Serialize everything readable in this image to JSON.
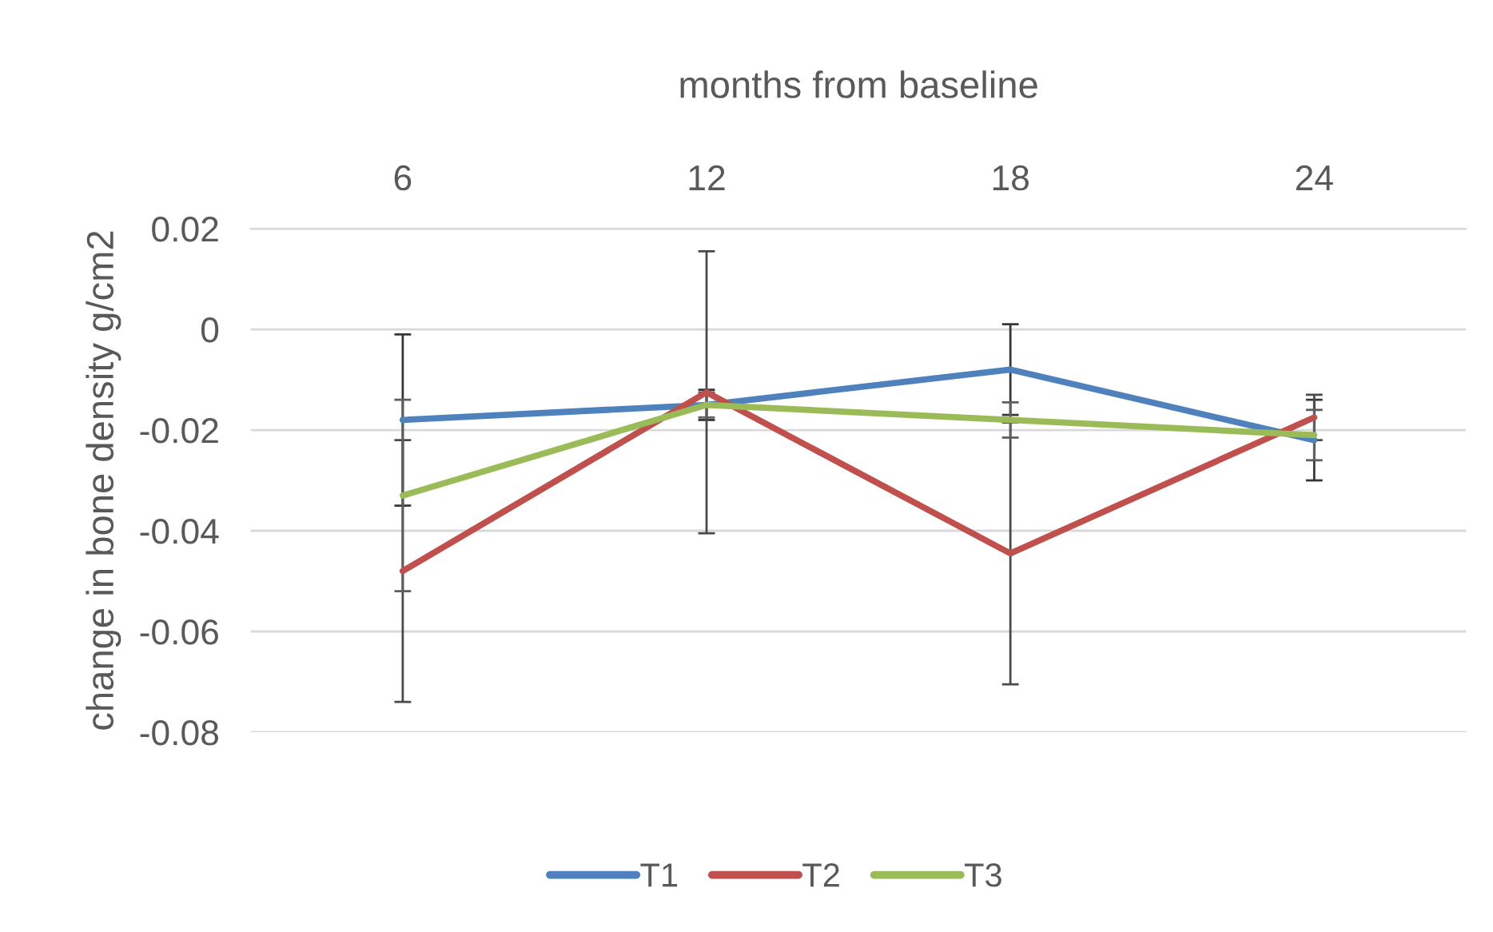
{
  "chart_data": {
    "type": "line",
    "xlabel": "months from baseline",
    "ylabel": "change in bone density g/cm2",
    "categories": [
      "6",
      "12",
      "18",
      "24"
    ],
    "series": [
      {
        "name": "T1",
        "color": "#4f81bd",
        "values": [
          -0.018,
          -0.015,
          -0.008,
          -0.022
        ],
        "errors": [
          0.017,
          0.003,
          0.009,
          0.008
        ]
      },
      {
        "name": "T2",
        "color": "#c0504d",
        "values": [
          -0.048,
          -0.0125,
          -0.0445,
          -0.0175
        ],
        "errors": [
          0.026,
          0.028,
          0.026,
          0.0045
        ]
      },
      {
        "name": "T3",
        "color": "#9bbb59",
        "values": [
          -0.033,
          -0.015,
          -0.018,
          -0.021
        ],
        "errors": [
          0.019,
          0.0025,
          0.0035,
          0.005
        ]
      }
    ],
    "ylim": [
      -0.08,
      0.02
    ],
    "yticks": [
      0.02,
      0,
      -0.02,
      -0.04,
      -0.06,
      -0.08
    ],
    "grid": "y",
    "legend": "bottom"
  }
}
